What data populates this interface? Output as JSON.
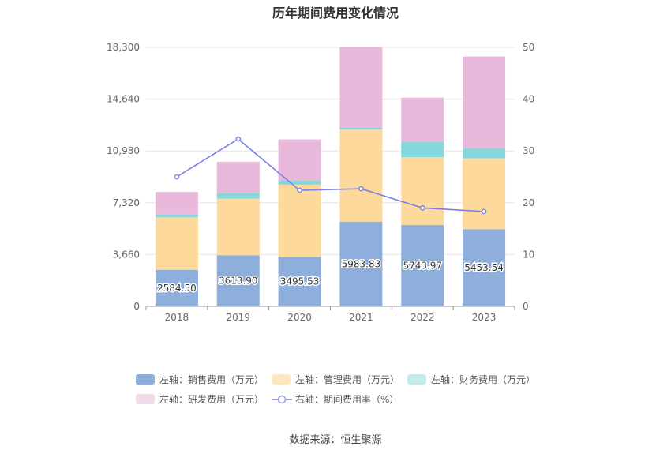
{
  "title": "历年期间费用变化情况",
  "source": "数据来源：恒生聚源",
  "chart_data": {
    "type": "bar",
    "categories": [
      "2018",
      "2019",
      "2020",
      "2021",
      "2022",
      "2023"
    ],
    "left_axis": {
      "ticks": [
        "0",
        "3,660",
        "7,320",
        "10,980",
        "14,640",
        "18,300"
      ],
      "min": 0,
      "max": 18300
    },
    "right_axis": {
      "ticks": [
        "0",
        "10",
        "20",
        "30",
        "40",
        "50"
      ],
      "min": 0,
      "max": 50
    },
    "series": [
      {
        "name": "左轴：销售费用（万元）",
        "color": "#8eaedc",
        "values": [
          2584.5,
          3613.9,
          3495.53,
          5983.83,
          5743.97,
          5453.54
        ],
        "labels": [
          "2584.50",
          "3613.90",
          "3495.53",
          "5983.83",
          "5743.97",
          "5453.54"
        ]
      },
      {
        "name": "左轴：管理费用（万元）",
        "color": "#fdd99b",
        "values": [
          3700,
          4000,
          5100,
          6500,
          4800,
          5000
        ]
      },
      {
        "name": "左轴：财务费用（万元）",
        "color": "#86d7db",
        "values": [
          200,
          400,
          300,
          150,
          1100,
          700
        ]
      },
      {
        "name": "左轴：研发费用（万元）",
        "color": "#e8b9da",
        "values": [
          1600,
          2200,
          2900,
          5700,
          3100,
          6500
        ]
      },
      {
        "name": "右轴：期间费用率（%）",
        "color": "#7b7fe6",
        "type": "line",
        "axis": "right",
        "values": [
          25.0,
          32.3,
          22.4,
          22.7,
          19.0,
          18.3
        ]
      }
    ],
    "legend_position": "bottom",
    "grid": true
  }
}
